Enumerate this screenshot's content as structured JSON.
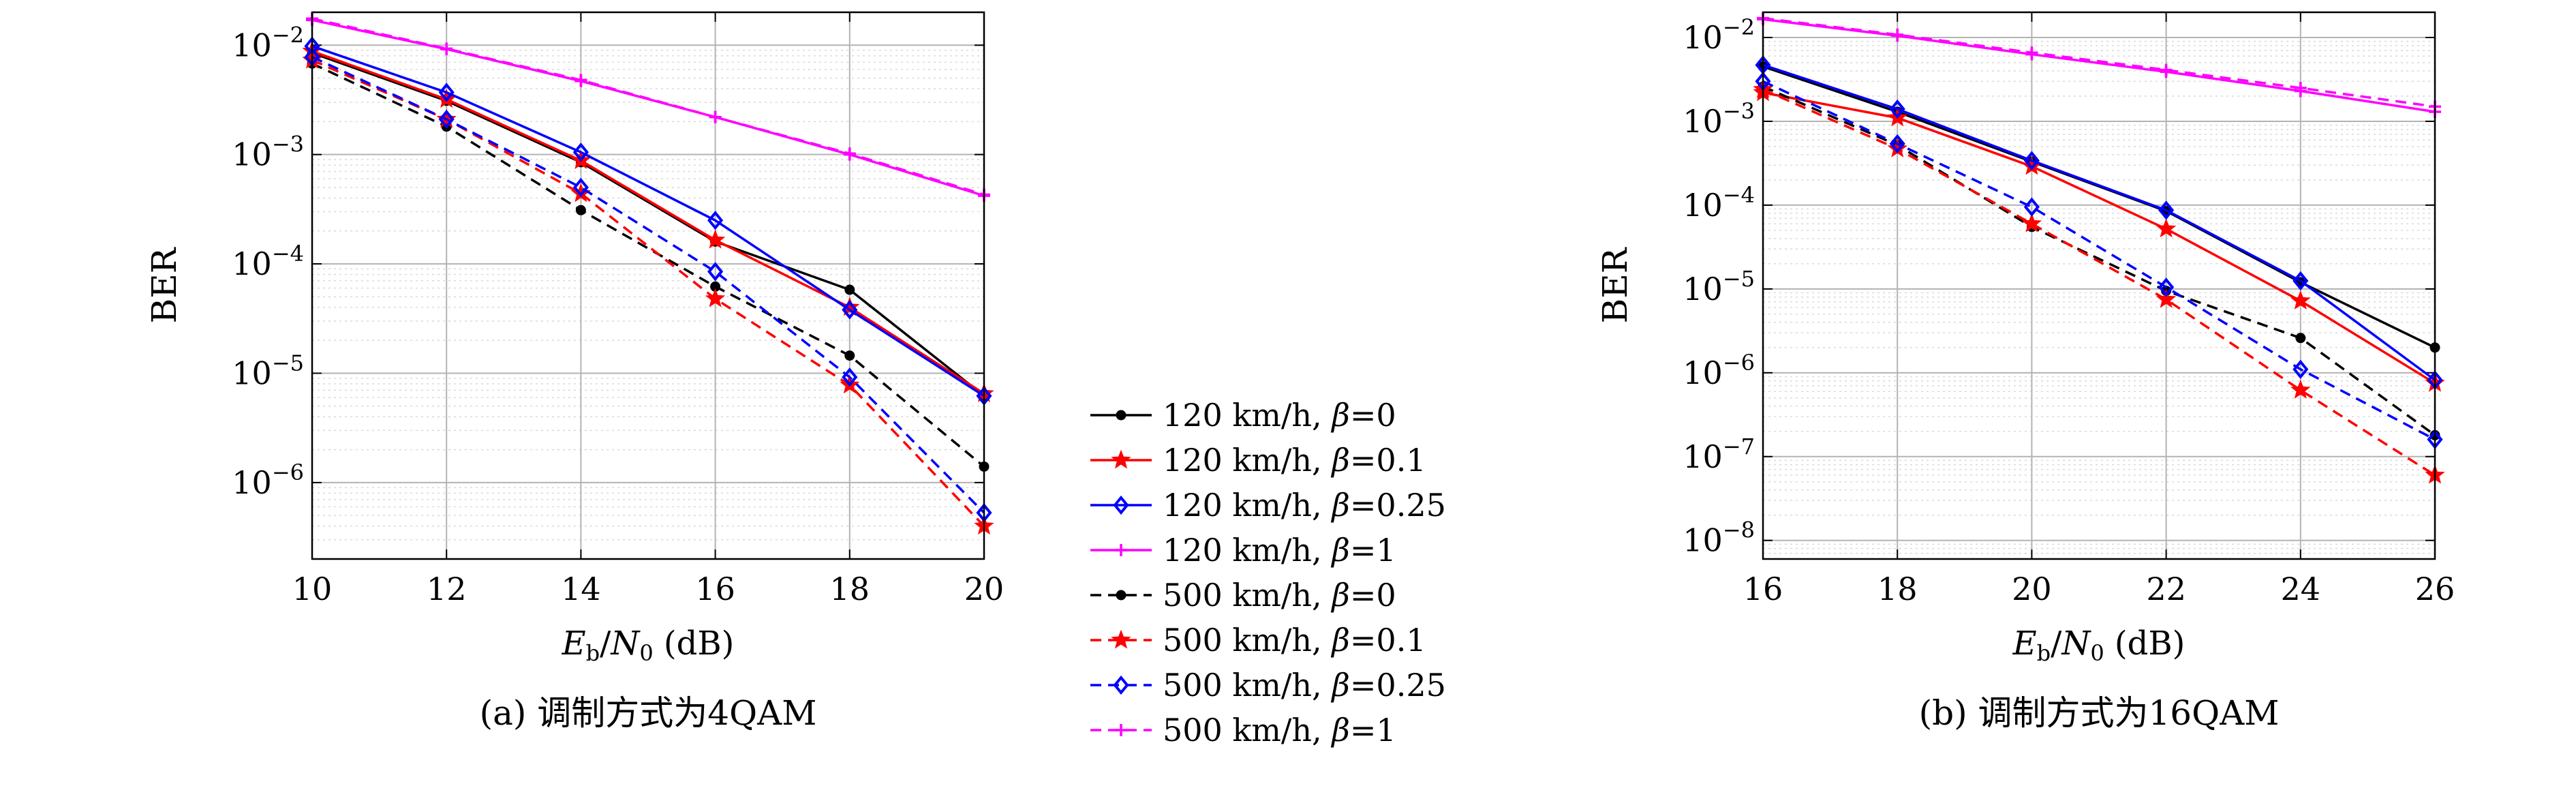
{
  "colors": {
    "black": "#000000",
    "red": "#ff0000",
    "blue": "#0000ff",
    "magenta": "#ff00ff",
    "grid": "#b3b3b3"
  },
  "legend": {
    "entries": [
      {
        "label": "120 km/h, β=0",
        "color": "#000000",
        "dash": "solid",
        "marker": "dot"
      },
      {
        "label": "120 km/h, β=0.1",
        "color": "#ff0000",
        "dash": "solid",
        "marker": "star"
      },
      {
        "label": "120 km/h, β=0.25",
        "color": "#0000ff",
        "dash": "solid",
        "marker": "diamond"
      },
      {
        "label": "120 km/h, β=1",
        "color": "#ff00ff",
        "dash": "solid",
        "marker": "plus"
      },
      {
        "label": "500 km/h, β=0",
        "color": "#000000",
        "dash": "dashed",
        "marker": "dot"
      },
      {
        "label": "500 km/h, β=0.1",
        "color": "#ff0000",
        "dash": "dashed",
        "marker": "star"
      },
      {
        "label": "500 km/h, β=0.25",
        "color": "#0000ff",
        "dash": "dashed",
        "marker": "diamond"
      },
      {
        "label": "500 km/h, β=1",
        "color": "#ff00ff",
        "dash": "dashed",
        "marker": "plus"
      }
    ]
  },
  "chart_data": [
    {
      "type": "line",
      "caption": "(a) 调制方式为4QAM",
      "xlabel": "Eb/N0 (dB)",
      "ylabel": "BER",
      "x": [
        10,
        12,
        14,
        16,
        18,
        20
      ],
      "xticks": [
        "10",
        "12",
        "14",
        "16",
        "18",
        "20"
      ],
      "xlim": [
        10,
        20
      ],
      "yscale": "log",
      "ylim": [
        2e-07,
        0.02
      ],
      "ytick_exponents": [
        -2,
        -3,
        -4,
        -5,
        -6
      ],
      "grid": true,
      "series": [
        {
          "name": "120 km/h, β=0",
          "values": [
            0.0085,
            0.0031,
            0.00085,
            0.00016,
            5.8e-05,
            6.2e-06
          ]
        },
        {
          "name": "120 km/h, β=0.1",
          "values": [
            0.0088,
            0.0032,
            0.00088,
            0.000165,
            4e-05,
            6.5e-06
          ]
        },
        {
          "name": "120 km/h, β=0.25",
          "values": [
            0.0098,
            0.0037,
            0.00105,
            0.00025,
            3.8e-05,
            6.2e-06
          ]
        },
        {
          "name": "120 km/h, β=1",
          "values": [
            0.017,
            0.0092,
            0.0047,
            0.0022,
            0.001,
            0.00042
          ]
        },
        {
          "name": "500 km/h, β=0",
          "values": [
            0.0068,
            0.0018,
            0.00031,
            6.2e-05,
            1.45e-05,
            1.4e-06
          ]
        },
        {
          "name": "500 km/h, β=0.1",
          "values": [
            0.0073,
            0.0021,
            0.00044,
            4.8e-05,
            7.8e-06,
            4e-07
          ]
        },
        {
          "name": "500 km/h, β=0.25",
          "values": [
            0.0078,
            0.0021,
            0.0005,
            8.5e-05,
            9.2e-06,
            5.3e-07
          ]
        },
        {
          "name": "500 km/h, β=1",
          "values": [
            0.0175,
            0.0093,
            0.0048,
            0.0022,
            0.00102,
            0.00043
          ]
        }
      ]
    },
    {
      "type": "line",
      "caption": "(b) 调制方式为16QAM",
      "xlabel": "Eb/N0 (dB)",
      "ylabel": "BER",
      "x": [
        16,
        18,
        20,
        22,
        24,
        26
      ],
      "xticks": [
        "16",
        "18",
        "20",
        "22",
        "24",
        "26"
      ],
      "xlim": [
        16,
        26
      ],
      "yscale": "log",
      "ylim": [
        6e-09,
        0.02
      ],
      "ytick_exponents": [
        -2,
        -3,
        -4,
        -5,
        -6,
        -7,
        -8
      ],
      "grid": true,
      "series": [
        {
          "name": "120 km/h, β=0",
          "values": [
            0.0045,
            0.0013,
            0.00033,
            8.5e-05,
            1.2e-05,
            2e-06
          ]
        },
        {
          "name": "120 km/h, β=0.1",
          "values": [
            0.0022,
            0.0011,
            0.00029,
            5.2e-05,
            7.2e-06,
            7.5e-07
          ]
        },
        {
          "name": "120 km/h, β=0.25",
          "values": [
            0.0047,
            0.0014,
            0.00034,
            8.7e-05,
            1.25e-05,
            8.2e-07
          ]
        },
        {
          "name": "120 km/h, β=1",
          "values": [
            0.0165,
            0.0105,
            0.0063,
            0.0039,
            0.0023,
            0.0013
          ]
        },
        {
          "name": "500 km/h, β=0",
          "values": [
            0.0026,
            0.00052,
            5.5e-05,
            9.5e-06,
            2.6e-06,
            1.8e-07
          ]
        },
        {
          "name": "500 km/h, β=0.1",
          "values": [
            0.0024,
            0.00047,
            6e-05,
            7.5e-06,
            6.2e-07,
            6e-08
          ]
        },
        {
          "name": "500 km/h, β=0.25",
          "values": [
            0.003,
            0.00054,
            9.5e-05,
            1.05e-05,
            1.1e-06,
            1.6e-07
          ]
        },
        {
          "name": "500 km/h, β=1",
          "values": [
            0.017,
            0.0108,
            0.0066,
            0.0041,
            0.0025,
            0.0015
          ]
        }
      ]
    }
  ]
}
